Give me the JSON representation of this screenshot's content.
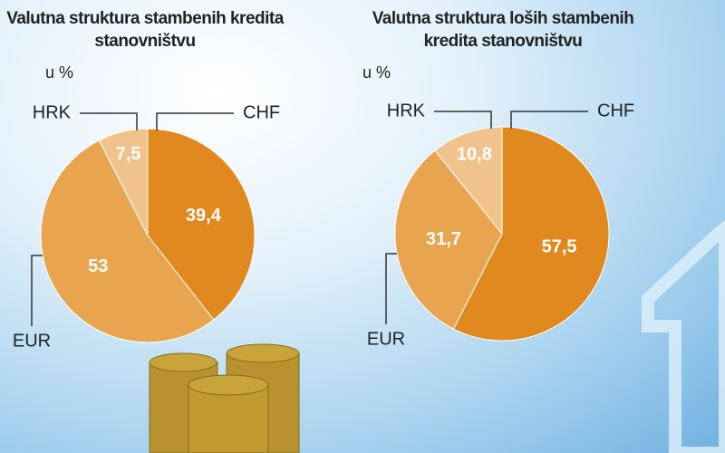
{
  "chart_data": [
    {
      "type": "pie",
      "title": "Valutna struktura stambenih kredita stanovništvu",
      "subtitle": "u %",
      "categories": [
        "CHF",
        "EUR",
        "HRK"
      ],
      "values": [
        39.4,
        53,
        7.5
      ],
      "value_labels": [
        "39,4",
        "53",
        "7,5"
      ],
      "colors": [
        "#e0891f",
        "#e8a44f",
        "#f1c38c"
      ]
    },
    {
      "type": "pie",
      "title": "Valutna struktura loših stambenih kredita stanovništvu",
      "subtitle": "u %",
      "categories": [
        "CHF",
        "EUR",
        "HRK"
      ],
      "values": [
        57.5,
        31.7,
        10.8
      ],
      "value_labels": [
        "57,5",
        "31,7",
        "10,8"
      ],
      "colors": [
        "#e0891f",
        "#e8a44f",
        "#f1c38c"
      ]
    }
  ]
}
